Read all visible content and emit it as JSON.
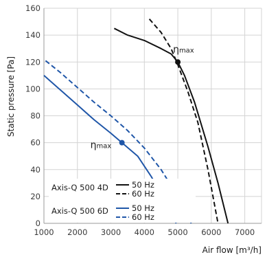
{
  "chart_data": {
    "type": "line",
    "xlabel": "Air flow [m³/h]",
    "ylabel": "Static pressure [Pa]",
    "xlim": [
      1000,
      7500
    ],
    "ylim": [
      0,
      160
    ],
    "xticks": [
      1000,
      2000,
      3000,
      4000,
      5000,
      6000,
      7000
    ],
    "yticks": [
      0,
      20,
      40,
      60,
      80,
      100,
      120,
      140,
      160
    ],
    "grid": true,
    "legend": {
      "placement": "bottom-left",
      "groups": [
        {
          "label": "Axis-Q 500 4D",
          "entries": [
            "50 Hz",
            "60 Hz"
          ]
        },
        {
          "label": "Axis-Q 500 6D",
          "entries": [
            "50 Hz",
            "60 Hz"
          ]
        }
      ]
    },
    "series": [
      {
        "group": "Axis-Q 500 4D",
        "name": "50 Hz",
        "color": "#111111",
        "dash": "solid",
        "x": [
          3100,
          3500,
          4000,
          4500,
          4800,
          5000,
          5200,
          5500,
          5900,
          6200,
          6500
        ],
        "y": [
          145,
          140,
          136,
          130,
          126,
          120,
          110,
          90,
          57,
          30,
          0
        ]
      },
      {
        "group": "Axis-Q 500 4D",
        "name": "60 Hz",
        "color": "#111111",
        "dash": "dashed",
        "x": [
          4150,
          4500,
          4800,
          5000,
          5300,
          5600,
          5900,
          6200
        ],
        "y": [
          152,
          142,
          130,
          118,
          98,
          75,
          40,
          0
        ]
      },
      {
        "group": "Axis-Q 500 6D",
        "name": "50 Hz",
        "color": "#1f56a8",
        "dash": "solid",
        "x": [
          1000,
          1500,
          2000,
          2500,
          3000,
          3330,
          3800,
          4200,
          4600,
          4950
        ],
        "y": [
          110,
          99,
          88,
          77,
          67,
          60,
          50,
          35,
          18,
          0
        ]
      },
      {
        "group": "Axis-Q 500 6D",
        "name": "60 Hz",
        "color": "#1f56a8",
        "dash": "dashed",
        "x": [
          1050,
          1500,
          2000,
          2500,
          3000,
          3500,
          4000,
          4500,
          5000,
          5400
        ],
        "y": [
          121,
          112,
          101,
          90,
          80,
          69,
          56,
          40,
          20,
          0
        ]
      }
    ],
    "points": [
      {
        "label": "ηmax",
        "x": 5000,
        "y": 120,
        "color": "#111111"
      },
      {
        "label": "ηmax",
        "x": 3330,
        "y": 60,
        "color": "#1f56a8"
      }
    ]
  }
}
